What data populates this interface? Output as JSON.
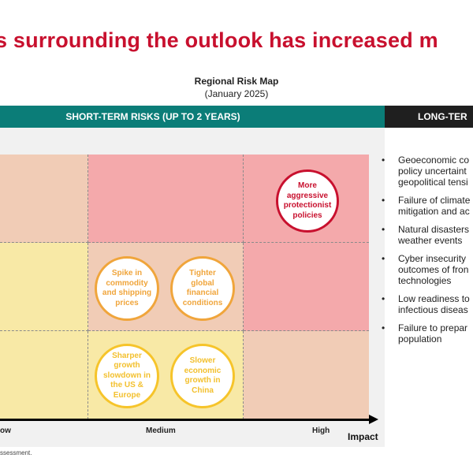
{
  "title": "s surrounding the outlook has increased m",
  "map": {
    "title": "Regional Risk Map",
    "subtitle": "(January 2025)"
  },
  "headers": {
    "short_term": "SHORT-TERM RISKS (UP TO 2 YEARS)",
    "long_term": "LONG-TER"
  },
  "zone_colors": {
    "red": "#f4a9ab",
    "peach": "#f1ccb6",
    "yellow": "#f8e9a6"
  },
  "grid": {
    "rows": [
      [
        "peach",
        "red",
        "red"
      ],
      [
        "yellow",
        "peach",
        "red"
      ],
      [
        "yellow",
        "yellow",
        "peach"
      ]
    ]
  },
  "axis": {
    "ticks": [
      "ow",
      "Medium",
      "High"
    ],
    "label": "Impact"
  },
  "risks": [
    {
      "label": "More aggressive protectionist policies",
      "color": "red"
    },
    {
      "label": "Spike in commodity and shipping prices",
      "color": "orange"
    },
    {
      "label": "Tighter global financial conditions",
      "color": "orange"
    },
    {
      "label": "Sharper growth slowdown in the US & Europe",
      "color": "yellow"
    },
    {
      "label": "Slower economic growth in China",
      "color": "yellow"
    }
  ],
  "long_term_risks": [
    "Geoeconomic co\npolicy uncertaint\ngeopolitical tensi",
    "Failure of climate\nmitigation and ac",
    "Natural disasters\nweather events",
    "Cyber insecurity\noutcomes of fron\ntechnologies",
    "Low readiness to\ninfectious diseas",
    "Failure to prepar\npopulation"
  ],
  "source": "ssessment."
}
